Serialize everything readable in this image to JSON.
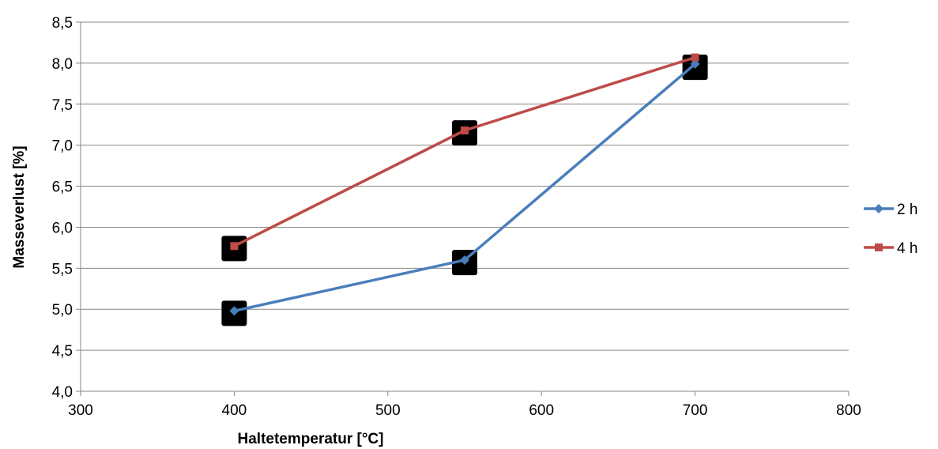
{
  "chart_data": {
    "type": "line",
    "xlabel": "Haltetemperatur [°C]",
    "ylabel": "Masseverlust [%]",
    "xlim": [
      300,
      800
    ],
    "ylim": [
      4.0,
      8.5
    ],
    "x_ticks": [
      "300",
      "400",
      "500",
      "600",
      "700",
      "800"
    ],
    "y_ticks": [
      "4,0",
      "4,5",
      "5,0",
      "5,5",
      "6,0",
      "6,5",
      "7,0",
      "7,5",
      "8,0",
      "8,5"
    ],
    "grid": "horizontal",
    "legend_position": "right",
    "series": [
      {
        "name": "2 h",
        "color": "#4A7EBB",
        "marker": "diamond",
        "x": [
          400,
          550,
          700
        ],
        "y": [
          4.98,
          5.6,
          7.99
        ]
      },
      {
        "name": "4 h",
        "color": "#BE4B48",
        "marker": "square",
        "x": [
          400,
          550,
          700
        ],
        "y": [
          5.77,
          7.18,
          8.07
        ]
      }
    ],
    "annotation_markers": [
      {
        "x": 400,
        "y": 4.95
      },
      {
        "x": 400,
        "y": 5.74
      },
      {
        "x": 550,
        "y": 5.57
      },
      {
        "x": 550,
        "y": 7.15
      },
      {
        "x": 700,
        "y": 7.95
      }
    ]
  }
}
